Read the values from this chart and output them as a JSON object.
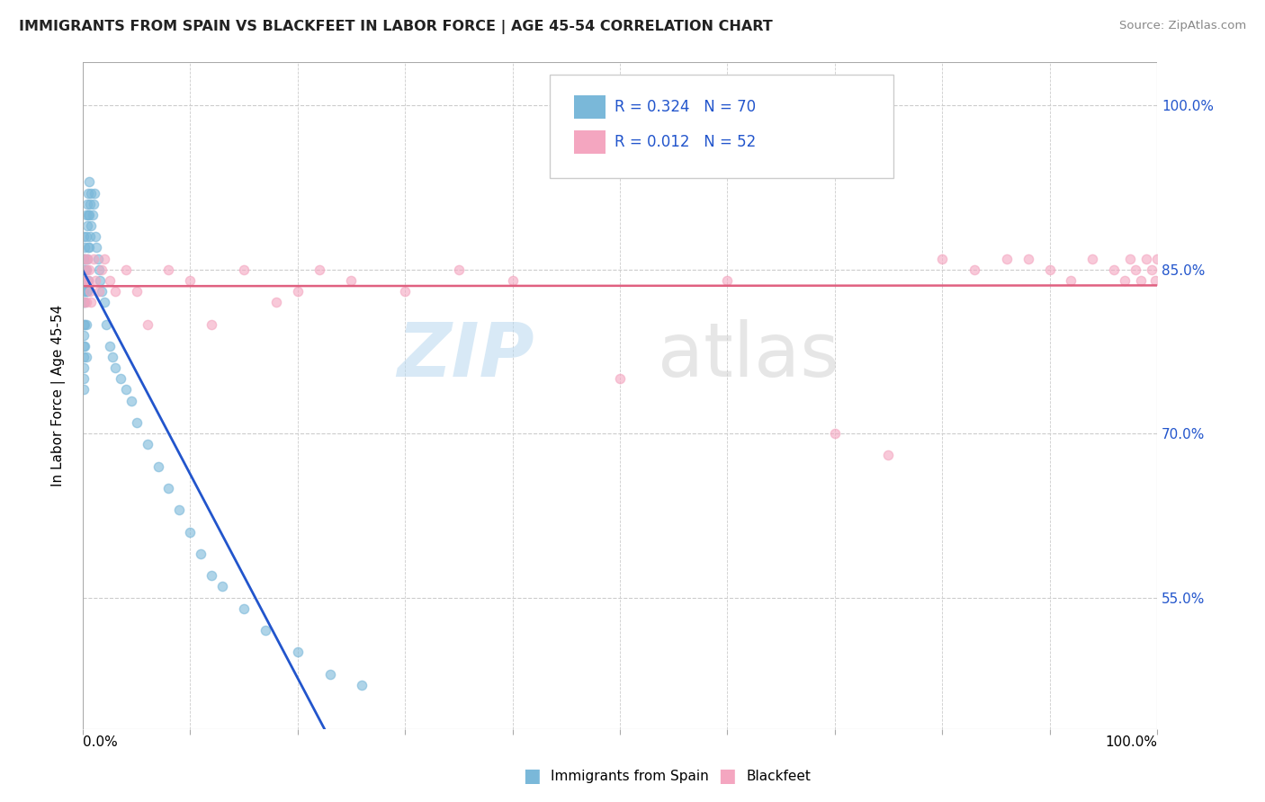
{
  "title": "IMMIGRANTS FROM SPAIN VS BLACKFEET IN LABOR FORCE | AGE 45-54 CORRELATION CHART",
  "source_text": "Source: ZipAtlas.com",
  "ylabel": "In Labor Force | Age 45-54",
  "legend_labels": [
    "Immigrants from Spain",
    "Blackfeet"
  ],
  "r_spain": "0.324",
  "n_spain": "70",
  "r_blackfeet": "0.012",
  "n_blackfeet": "52",
  "color_spain": "#7ab8d9",
  "color_blackfeet": "#f4a6c0",
  "color_regression_spain": "#2255cc",
  "color_regression_blackfeet": "#e06080",
  "ytick_labels": [
    "55.0%",
    "70.0%",
    "85.0%",
    "100.0%"
  ],
  "ytick_values": [
    0.55,
    0.7,
    0.85,
    1.0
  ],
  "xlim": [
    0.0,
    1.0
  ],
  "ylim": [
    0.43,
    1.04
  ],
  "spain_x": [
    0.001,
    0.001,
    0.001,
    0.001,
    0.001,
    0.001,
    0.001,
    0.001,
    0.001,
    0.001,
    0.001,
    0.001,
    0.002,
    0.002,
    0.002,
    0.002,
    0.002,
    0.002,
    0.003,
    0.003,
    0.003,
    0.003,
    0.003,
    0.003,
    0.004,
    0.004,
    0.004,
    0.004,
    0.005,
    0.005,
    0.005,
    0.005,
    0.006,
    0.006,
    0.006,
    0.007,
    0.007,
    0.008,
    0.008,
    0.009,
    0.01,
    0.011,
    0.012,
    0.013,
    0.014,
    0.015,
    0.016,
    0.018,
    0.02,
    0.022,
    0.025,
    0.028,
    0.03,
    0.035,
    0.04,
    0.045,
    0.05,
    0.06,
    0.07,
    0.08,
    0.09,
    0.1,
    0.11,
    0.12,
    0.13,
    0.15,
    0.17,
    0.2,
    0.23,
    0.26
  ],
  "spain_y": [
    0.88,
    0.86,
    0.84,
    0.83,
    0.82,
    0.8,
    0.79,
    0.78,
    0.77,
    0.76,
    0.75,
    0.74,
    0.87,
    0.86,
    0.85,
    0.82,
    0.8,
    0.78,
    0.9,
    0.88,
    0.85,
    0.83,
    0.8,
    0.77,
    0.91,
    0.89,
    0.86,
    0.83,
    0.92,
    0.9,
    0.87,
    0.84,
    0.93,
    0.9,
    0.87,
    0.91,
    0.88,
    0.92,
    0.89,
    0.9,
    0.91,
    0.92,
    0.88,
    0.87,
    0.86,
    0.85,
    0.84,
    0.83,
    0.82,
    0.8,
    0.78,
    0.77,
    0.76,
    0.75,
    0.74,
    0.73,
    0.71,
    0.69,
    0.67,
    0.65,
    0.63,
    0.61,
    0.59,
    0.57,
    0.56,
    0.54,
    0.52,
    0.5,
    0.48,
    0.47
  ],
  "blackfeet_x": [
    0.001,
    0.001,
    0.002,
    0.002,
    0.003,
    0.003,
    0.004,
    0.005,
    0.006,
    0.007,
    0.008,
    0.01,
    0.012,
    0.015,
    0.018,
    0.02,
    0.025,
    0.03,
    0.04,
    0.05,
    0.06,
    0.08,
    0.1,
    0.12,
    0.15,
    0.18,
    0.2,
    0.22,
    0.25,
    0.3,
    0.35,
    0.4,
    0.5,
    0.6,
    0.7,
    0.75,
    0.8,
    0.83,
    0.86,
    0.88,
    0.9,
    0.92,
    0.94,
    0.96,
    0.97,
    0.975,
    0.98,
    0.985,
    0.99,
    0.995,
    0.998,
    1.0
  ],
  "blackfeet_y": [
    0.84,
    0.82,
    0.86,
    0.84,
    0.85,
    0.82,
    0.86,
    0.84,
    0.85,
    0.83,
    0.82,
    0.86,
    0.84,
    0.83,
    0.85,
    0.86,
    0.84,
    0.83,
    0.85,
    0.83,
    0.8,
    0.85,
    0.84,
    0.8,
    0.85,
    0.82,
    0.83,
    0.85,
    0.84,
    0.83,
    0.85,
    0.84,
    0.75,
    0.84,
    0.7,
    0.68,
    0.86,
    0.85,
    0.86,
    0.86,
    0.85,
    0.84,
    0.86,
    0.85,
    0.84,
    0.86,
    0.85,
    0.84,
    0.86,
    0.85,
    0.84,
    0.86
  ]
}
